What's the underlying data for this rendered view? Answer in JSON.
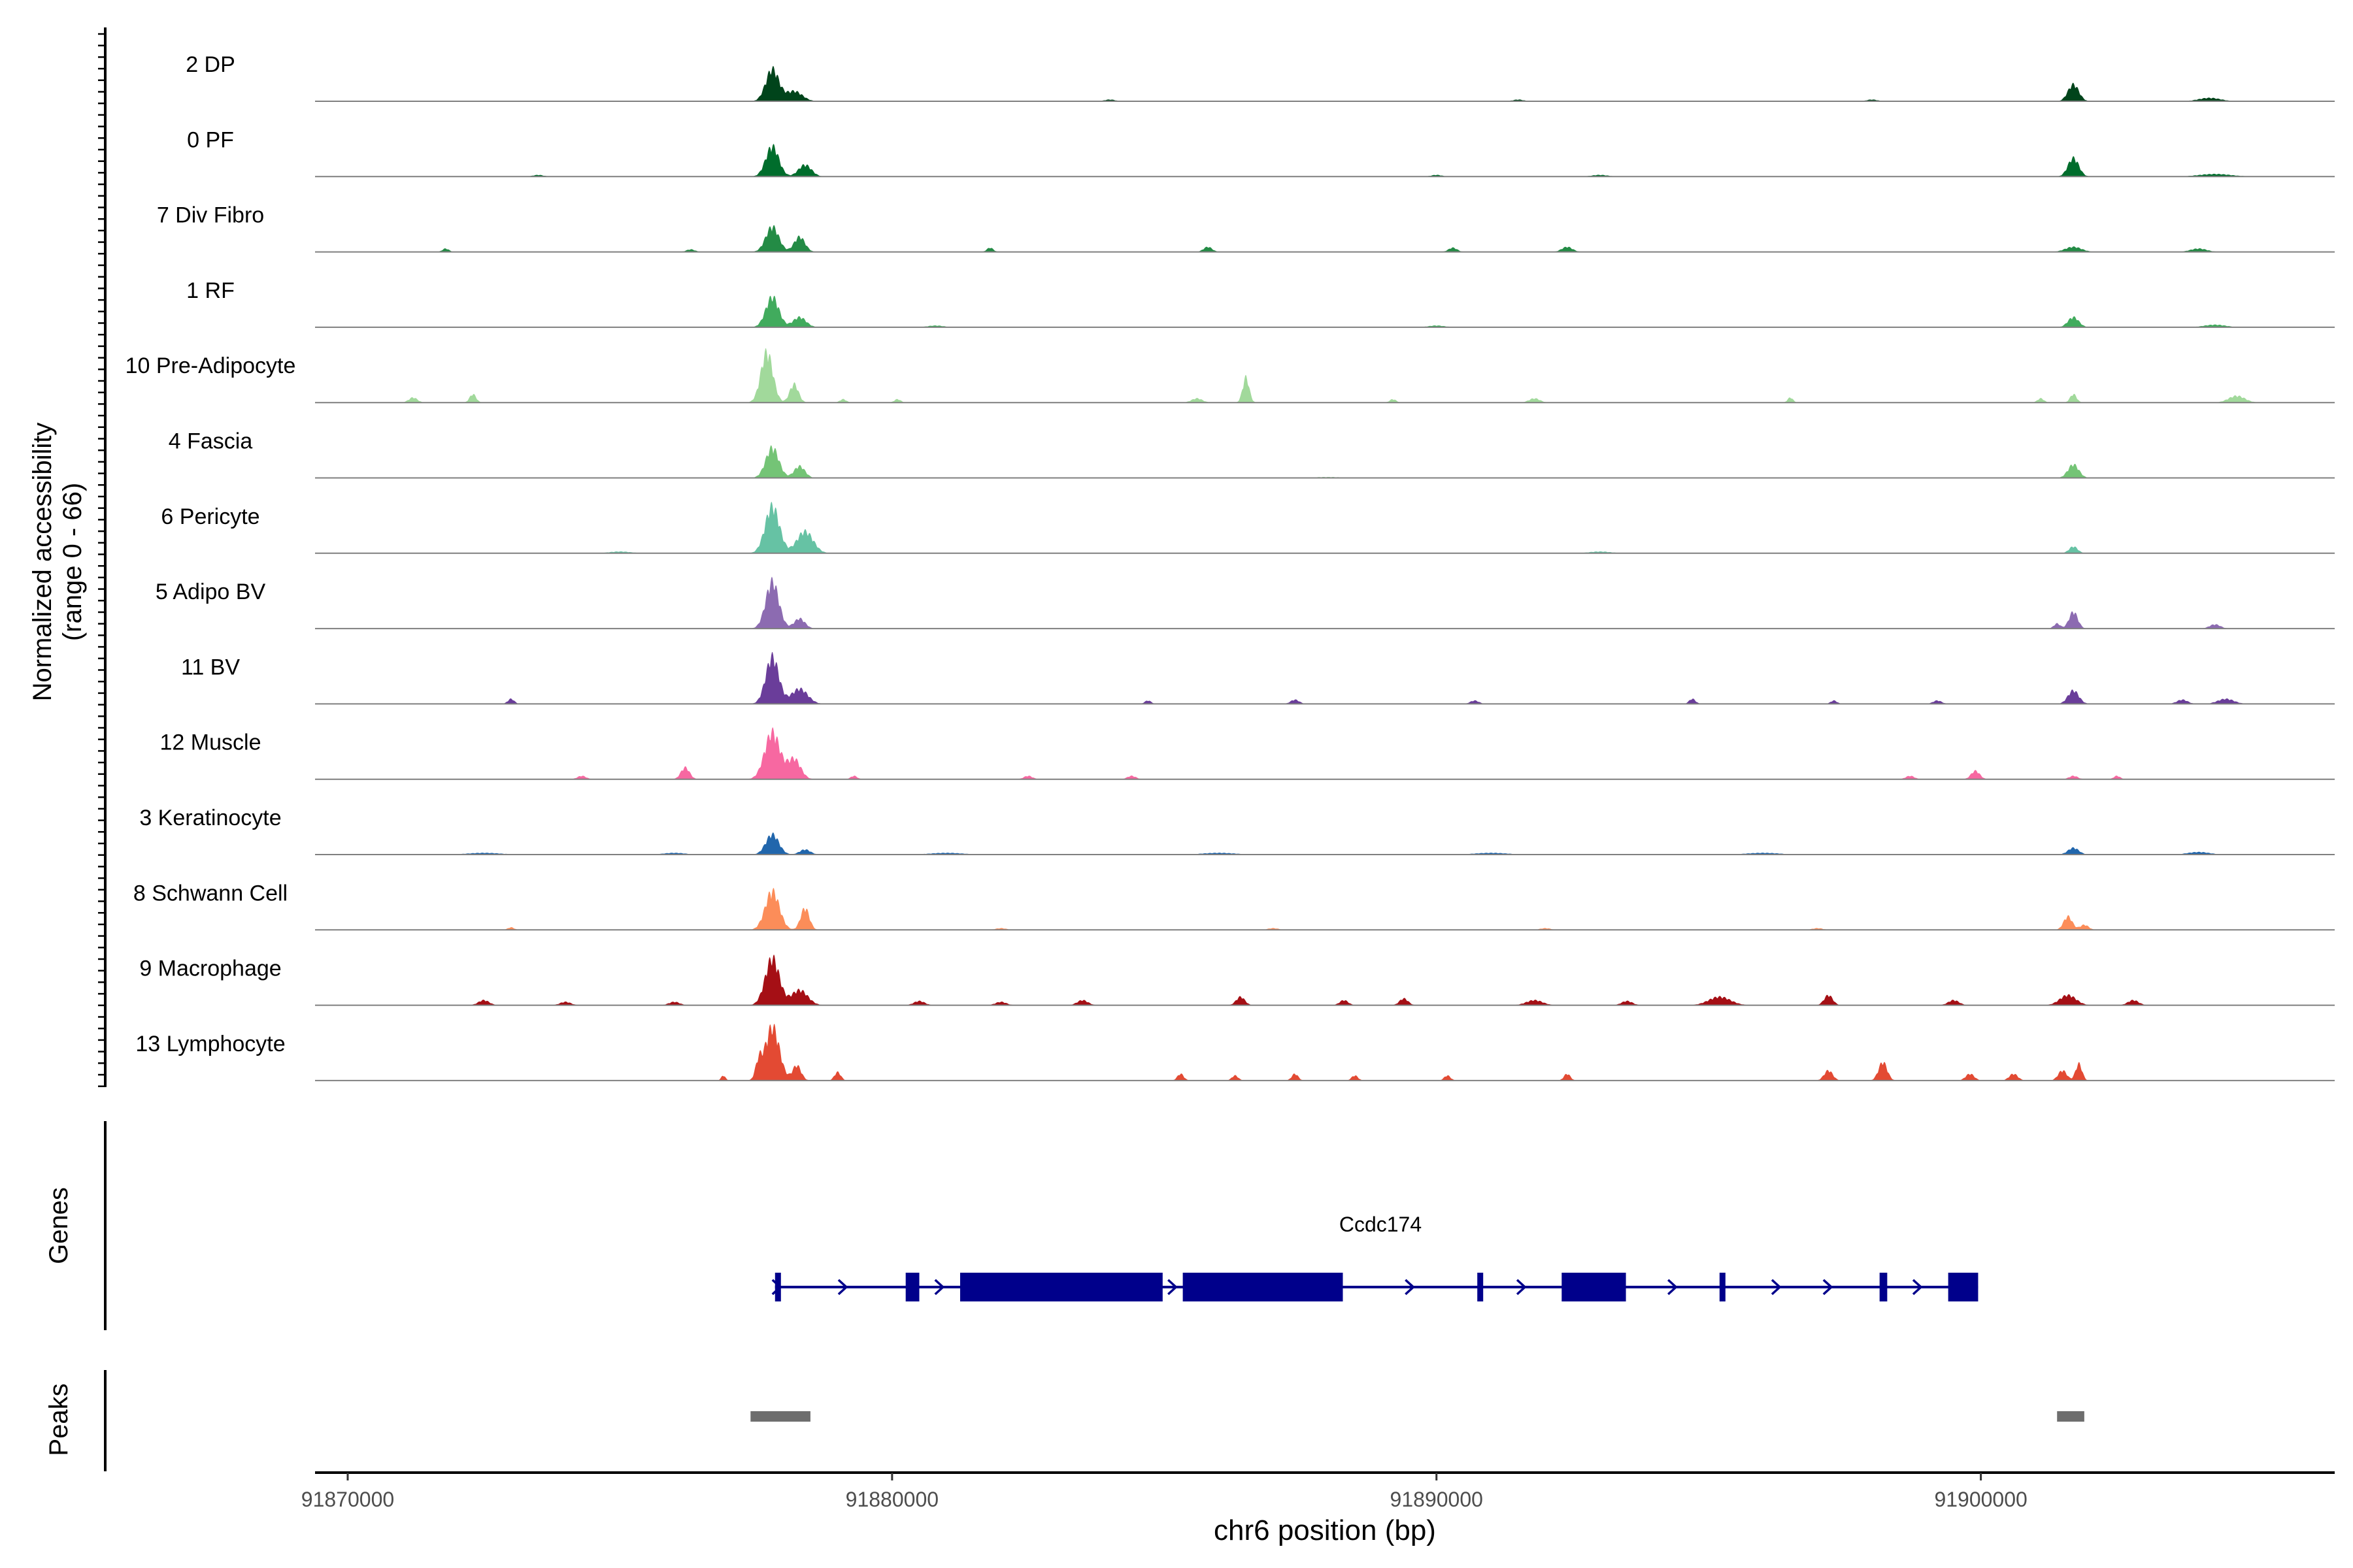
{
  "chart_data": {
    "type": "area",
    "chromosome": "chr6",
    "xlabel": "chr6 position (bp)",
    "ylabel_line1": "Normalized accessibility",
    "ylabel_line2": "(range 0 - 66)",
    "y_range": [
      0,
      66
    ],
    "x_range": [
      91869400,
      91906500
    ],
    "x_ticks": [
      91870000,
      91880000,
      91890000,
      91900000
    ],
    "x_tick_labels": [
      "91870000",
      "91880000",
      "91890000",
      "91900000"
    ],
    "tracks": [
      {
        "name": "2 DP",
        "color": "#00441b",
        "peaks": [
          [
            91877800,
            38,
            120
          ],
          [
            91878200,
            12,
            150
          ],
          [
            91901700,
            20,
            100
          ],
          [
            91904200,
            4,
            200
          ],
          [
            91884000,
            2,
            100
          ],
          [
            91891500,
            2,
            100
          ],
          [
            91898000,
            2,
            100
          ]
        ]
      },
      {
        "name": "0 PF",
        "color": "#006d2c",
        "peaks": [
          [
            91877800,
            36,
            120
          ],
          [
            91878400,
            14,
            120
          ],
          [
            91901700,
            22,
            100
          ],
          [
            91904300,
            3,
            300
          ],
          [
            91873500,
            2,
            100
          ],
          [
            91890000,
            2,
            100
          ],
          [
            91893000,
            2,
            150
          ]
        ]
      },
      {
        "name": "7 Div Fibro",
        "color": "#238b45",
        "peaks": [
          [
            91877800,
            30,
            120
          ],
          [
            91878300,
            18,
            100
          ],
          [
            91871800,
            4,
            60
          ],
          [
            91876300,
            3,
            80
          ],
          [
            91881800,
            5,
            60
          ],
          [
            91885800,
            6,
            80
          ],
          [
            91890300,
            5,
            80
          ],
          [
            91892400,
            6,
            100
          ],
          [
            91901700,
            6,
            150
          ],
          [
            91904000,
            4,
            150
          ]
        ]
      },
      {
        "name": "1 RF",
        "color": "#41ab5d",
        "peaks": [
          [
            91877800,
            36,
            120
          ],
          [
            91878300,
            12,
            120
          ],
          [
            91901700,
            12,
            100
          ],
          [
            91904300,
            3,
            200
          ],
          [
            91880800,
            2,
            150
          ],
          [
            91890000,
            2,
            150
          ]
        ]
      },
      {
        "name": "10 Pre-Adipocyte",
        "color": "#a1d99b",
        "peaks": [
          [
            91877700,
            60,
            110
          ],
          [
            91878200,
            22,
            80
          ],
          [
            91871200,
            6,
            80
          ],
          [
            91872300,
            10,
            60
          ],
          [
            91879100,
            4,
            60
          ],
          [
            91880100,
            4,
            60
          ],
          [
            91885600,
            5,
            100
          ],
          [
            91886500,
            30,
            60
          ],
          [
            91889200,
            4,
            60
          ],
          [
            91891800,
            5,
            100
          ],
          [
            91896500,
            6,
            50
          ],
          [
            91901100,
            5,
            60
          ],
          [
            91901700,
            10,
            60
          ],
          [
            91904700,
            8,
            150
          ]
        ]
      },
      {
        "name": "4 Fascia",
        "color": "#74c476",
        "peaks": [
          [
            91877800,
            36,
            120
          ],
          [
            91878300,
            14,
            100
          ],
          [
            91901700,
            16,
            100
          ],
          [
            91888000,
            1,
            300
          ]
        ]
      },
      {
        "name": "6 Pericyte",
        "color": "#66c2a4",
        "peaks": [
          [
            91877800,
            56,
            130
          ],
          [
            91878400,
            26,
            150
          ],
          [
            91901700,
            8,
            80
          ],
          [
            91875000,
            2,
            200
          ],
          [
            91893000,
            2,
            200
          ]
        ]
      },
      {
        "name": "5 Adipo BV",
        "color": "#8c6bb1",
        "peaks": [
          [
            91877800,
            56,
            120
          ],
          [
            91878300,
            12,
            100
          ],
          [
            91901700,
            20,
            80
          ],
          [
            91901400,
            6,
            60
          ],
          [
            91904300,
            5,
            100
          ]
        ]
      },
      {
        "name": "11 BV",
        "color": "#6a3d9a",
        "peaks": [
          [
            91877800,
            56,
            120
          ],
          [
            91878300,
            18,
            150
          ],
          [
            91873000,
            6,
            60
          ],
          [
            91884700,
            4,
            60
          ],
          [
            91887400,
            5,
            80
          ],
          [
            91890700,
            4,
            80
          ],
          [
            91894700,
            6,
            60
          ],
          [
            91897300,
            4,
            60
          ],
          [
            91899200,
            4,
            80
          ],
          [
            91901700,
            16,
            100
          ],
          [
            91903700,
            5,
            100
          ],
          [
            91904500,
            6,
            150
          ]
        ]
      },
      {
        "name": "12 Muscle",
        "color": "#f768a1",
        "peaks": [
          [
            91877800,
            56,
            140
          ],
          [
            91878200,
            24,
            120
          ],
          [
            91874300,
            4,
            80
          ],
          [
            91876200,
            14,
            80
          ],
          [
            91879300,
            4,
            60
          ],
          [
            91882500,
            4,
            80
          ],
          [
            91884400,
            4,
            80
          ],
          [
            91898700,
            4,
            80
          ],
          [
            91899900,
            10,
            80
          ],
          [
            91901700,
            4,
            80
          ],
          [
            91902500,
            4,
            60
          ]
        ]
      },
      {
        "name": "3 Keratinocyte",
        "color": "#2166ac",
        "peaks": [
          [
            91877800,
            24,
            120
          ],
          [
            91878400,
            6,
            100
          ],
          [
            91872500,
            2,
            300
          ],
          [
            91876000,
            2,
            200
          ],
          [
            91881000,
            2,
            300
          ],
          [
            91886000,
            2,
            300
          ],
          [
            91891000,
            2,
            300
          ],
          [
            91896000,
            2,
            300
          ],
          [
            91901700,
            8,
            100
          ],
          [
            91904000,
            3,
            200
          ]
        ]
      },
      {
        "name": "8 Schwann Cell",
        "color": "#fc8d59",
        "peaks": [
          [
            91877800,
            46,
            130
          ],
          [
            91878400,
            26,
            80
          ],
          [
            91873000,
            3,
            60
          ],
          [
            91882000,
            2,
            100
          ],
          [
            91887000,
            2,
            100
          ],
          [
            91892000,
            2,
            100
          ],
          [
            91897000,
            2,
            100
          ],
          [
            91901600,
            16,
            80
          ],
          [
            91901900,
            6,
            80
          ]
        ]
      },
      {
        "name": "9 Macrophage",
        "color": "#a50f15",
        "peaks": [
          [
            91877800,
            56,
            130
          ],
          [
            91878300,
            18,
            150
          ],
          [
            91872500,
            6,
            100
          ],
          [
            91874000,
            4,
            100
          ],
          [
            91876000,
            4,
            100
          ],
          [
            91880500,
            5,
            100
          ],
          [
            91882000,
            4,
            100
          ],
          [
            91883500,
            6,
            100
          ],
          [
            91886400,
            10,
            80
          ],
          [
            91888300,
            6,
            80
          ],
          [
            91889400,
            8,
            80
          ],
          [
            91891800,
            6,
            150
          ],
          [
            91893500,
            5,
            100
          ],
          [
            91895200,
            10,
            200
          ],
          [
            91897200,
            12,
            80
          ],
          [
            91899500,
            6,
            100
          ],
          [
            91901600,
            12,
            150
          ],
          [
            91902800,
            6,
            100
          ]
        ]
      },
      {
        "name": "13 Lymphocyte",
        "color": "#e34a33",
        "peaks": [
          [
            91877800,
            64,
            130
          ],
          [
            91877550,
            20,
            60
          ],
          [
            91878250,
            18,
            80
          ],
          [
            91879000,
            10,
            60
          ],
          [
            91876900,
            6,
            40
          ],
          [
            91885300,
            8,
            60
          ],
          [
            91886300,
            6,
            60
          ],
          [
            91887400,
            8,
            60
          ],
          [
            91888500,
            6,
            60
          ],
          [
            91890200,
            6,
            60
          ],
          [
            91892400,
            8,
            60
          ],
          [
            91897200,
            12,
            80
          ],
          [
            91898200,
            22,
            80
          ],
          [
            91899800,
            8,
            80
          ],
          [
            91900600,
            8,
            80
          ],
          [
            91901500,
            12,
            80
          ],
          [
            91901800,
            20,
            60
          ]
        ]
      }
    ],
    "genes": {
      "label": "Genes",
      "gene_name": "Ccdc174",
      "strand": "+",
      "start": 91877850,
      "end": 91899950,
      "color": "#00008b",
      "exons": [
        [
          91877850,
          91877950
        ],
        [
          91880250,
          91880500
        ],
        [
          91881250,
          91884970
        ],
        [
          91885340,
          91888280
        ],
        [
          91890750,
          91890830
        ],
        [
          91892300,
          91893480
        ],
        [
          91895200,
          91895300
        ],
        [
          91898140,
          91898280
        ],
        [
          91899400,
          91899950
        ]
      ]
    },
    "peaks_track": {
      "label": "Peaks",
      "color": "#6e6e6e",
      "regions": [
        [
          91877400,
          91878500
        ],
        [
          91901400,
          91901900
        ]
      ]
    }
  }
}
